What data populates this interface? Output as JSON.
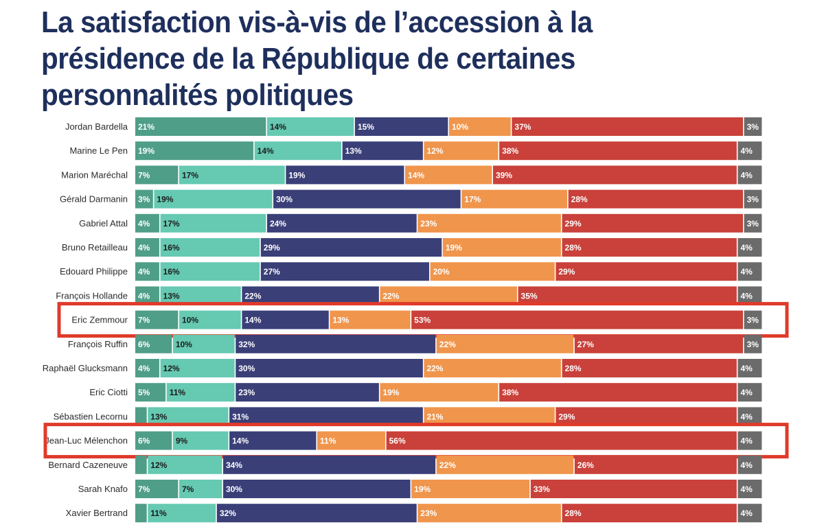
{
  "title": "La satisfaction vis-à-vis de l’accession à la présidence de la République de certaines personnalités politiques",
  "chart_data": {
    "type": "bar",
    "orientation": "horizontal",
    "stacked": true,
    "normalized": true,
    "title": "La satisfaction vis-à-vis de l’accession à la présidence de la République de certaines personnalités politiques",
    "xlim": [
      0,
      100
    ],
    "segment_colors": [
      "#4f9e88",
      "#66c9b2",
      "#3a3f78",
      "#f0954c",
      "#c9413a",
      "#6b6b6b"
    ],
    "label_colors": [
      "#ffffff",
      "#1a1a1a",
      "#ffffff",
      "#ffffff",
      "#ffffff",
      "#ffffff"
    ],
    "highlight_color": "#e03a2a",
    "highlighted": [
      "Eric Zemmour",
      "Jean-Luc Mélenchon"
    ],
    "rows": [
      {
        "name": "Jordan Bardella",
        "values": [
          21,
          14,
          15,
          10,
          37,
          3
        ],
        "labels": [
          "21%",
          "14%",
          "15%",
          "10%",
          "37%",
          "3%"
        ]
      },
      {
        "name": "Marine Le Pen",
        "values": [
          19,
          14,
          13,
          12,
          38,
          4
        ],
        "labels": [
          "19%",
          "14%",
          "13%",
          "12%",
          "38%",
          "4%"
        ]
      },
      {
        "name": "Marion Maréchal",
        "values": [
          7,
          17,
          19,
          14,
          39,
          4
        ],
        "labels": [
          "7%",
          "17%",
          "19%",
          "14%",
          "39%",
          "4%"
        ]
      },
      {
        "name": "Gérald Darmanin",
        "values": [
          3,
          19,
          30,
          17,
          28,
          3
        ],
        "labels": [
          "3%",
          "19%",
          "30%",
          "17%",
          "28%",
          "3%"
        ]
      },
      {
        "name": "Gabriel Attal",
        "values": [
          4,
          17,
          24,
          23,
          29,
          3
        ],
        "labels": [
          "4%",
          "17%",
          "24%",
          "23%",
          "29%",
          "3%"
        ]
      },
      {
        "name": "Bruno Retailleau",
        "values": [
          4,
          16,
          29,
          19,
          28,
          4
        ],
        "labels": [
          "4%",
          "16%",
          "29%",
          "19%",
          "28%",
          "4%"
        ]
      },
      {
        "name": "Edouard Philippe",
        "values": [
          4,
          16,
          27,
          20,
          29,
          4
        ],
        "labels": [
          "4%",
          "16%",
          "27%",
          "20%",
          "29%",
          "4%"
        ]
      },
      {
        "name": "François Hollande",
        "values": [
          4,
          13,
          22,
          22,
          35,
          4
        ],
        "labels": [
          "4%",
          "13%",
          "22%",
          "22%",
          "35%",
          "4%"
        ]
      },
      {
        "name": "Eric Zemmour",
        "values": [
          7,
          10,
          14,
          13,
          53,
          3
        ],
        "labels": [
          "7%",
          "10%",
          "14%",
          "13%",
          "53%",
          "3%"
        ]
      },
      {
        "name": "François Ruffin",
        "values": [
          6,
          10,
          32,
          22,
          27,
          3
        ],
        "labels": [
          "6%",
          "10%",
          "32%",
          "22%",
          "27%",
          "3%"
        ]
      },
      {
        "name": "Raphaël Glucksmann",
        "values": [
          4,
          12,
          30,
          22,
          28,
          4
        ],
        "labels": [
          "4%",
          "12%",
          "30%",
          "22%",
          "28%",
          "4%"
        ]
      },
      {
        "name": "Eric Ciotti",
        "values": [
          5,
          11,
          23,
          19,
          38,
          4
        ],
        "labels": [
          "5%",
          "11%",
          "23%",
          "19%",
          "38%",
          "4%"
        ]
      },
      {
        "name": "Sébastien Lecornu",
        "values": [
          2,
          13,
          31,
          21,
          29,
          4
        ],
        "labels": [
          "",
          "13%",
          "31%",
          "21%",
          "29%",
          "4%"
        ]
      },
      {
        "name": "Jean-Luc Mélenchon",
        "values": [
          6,
          9,
          14,
          11,
          56,
          4
        ],
        "labels": [
          "6%",
          "9%",
          "14%",
          "11%",
          "56%",
          "4%"
        ]
      },
      {
        "name": "Bernard Cazeneuve",
        "values": [
          2,
          12,
          34,
          22,
          26,
          4
        ],
        "labels": [
          "",
          "12%",
          "34%",
          "22%",
          "26%",
          "4%"
        ]
      },
      {
        "name": "Sarah Knafo",
        "values": [
          7,
          7,
          30,
          19,
          33,
          4
        ],
        "labels": [
          "7%",
          "7%",
          "30%",
          "19%",
          "33%",
          "4%"
        ]
      },
      {
        "name": "Xavier Bertrand",
        "values": [
          2,
          11,
          32,
          23,
          28,
          4
        ],
        "labels": [
          "",
          "11%",
          "32%",
          "23%",
          "28%",
          "4%"
        ]
      }
    ]
  }
}
